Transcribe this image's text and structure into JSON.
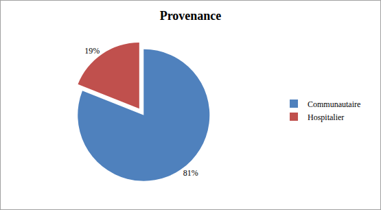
{
  "chart_data": {
    "type": "pie",
    "title": "Provenance",
    "categories": [
      "Communautaire",
      "Hospitalier"
    ],
    "values": [
      81,
      19
    ],
    "value_labels": [
      "81%",
      "19%"
    ],
    "colors": [
      "#4f81bd",
      "#c0504d"
    ],
    "data_labels": true,
    "legend": "right"
  }
}
